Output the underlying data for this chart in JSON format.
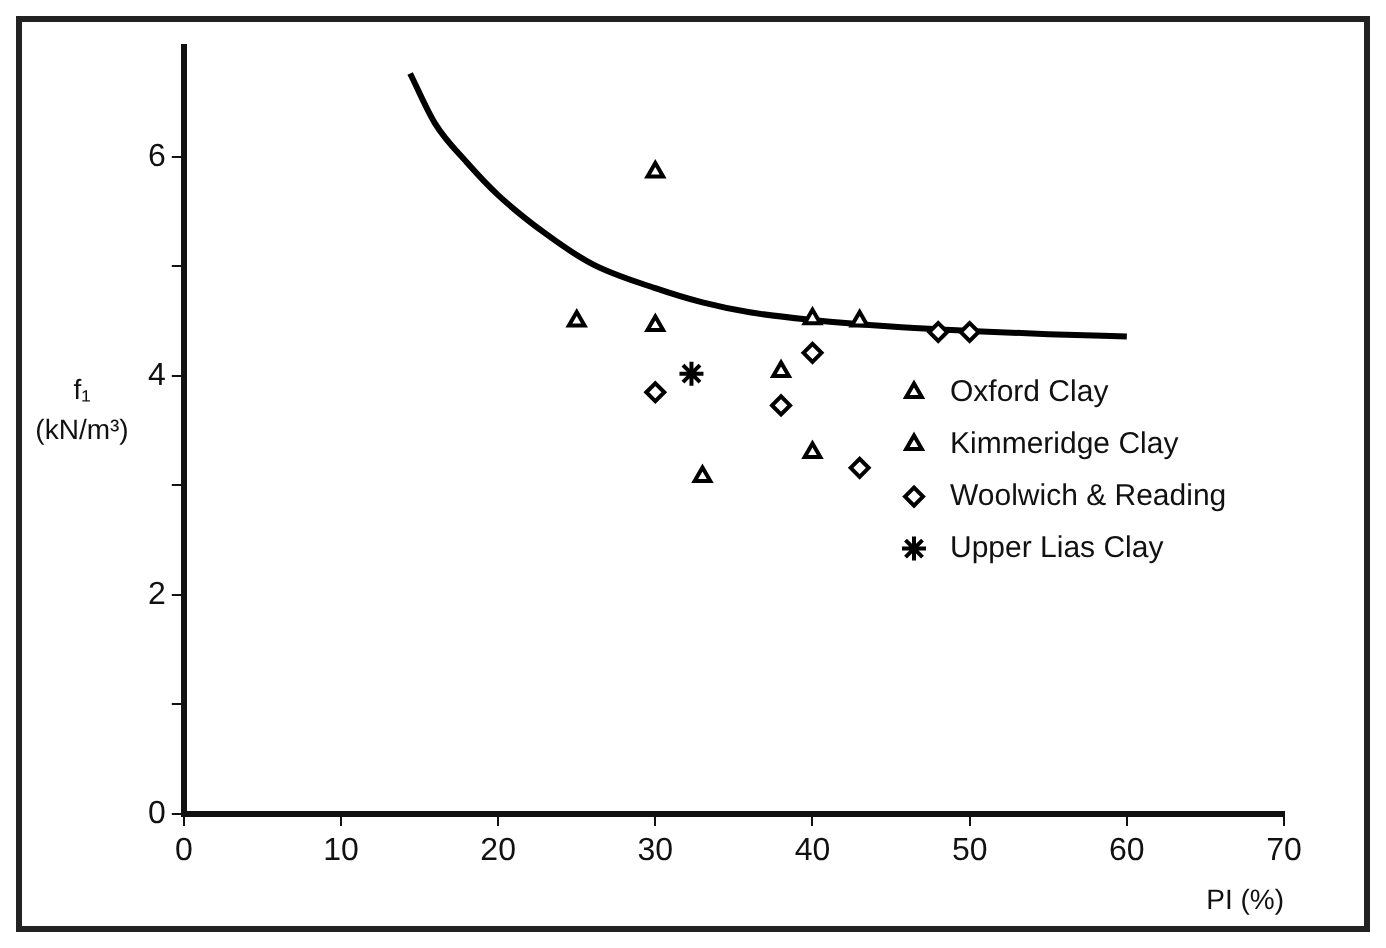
{
  "chart_data": {
    "type": "scatter",
    "xlabel": "PI (%)",
    "ylabel": "f₁ (kN/m³)",
    "xlim": [
      0,
      70
    ],
    "xticks": [
      0,
      10,
      20,
      30,
      40,
      50,
      60,
      70
    ],
    "ylim": [
      0,
      7
    ],
    "yticks": [
      0,
      {
        "value": 1,
        "label": null
      },
      2,
      {
        "value": 3,
        "label": null
      },
      4,
      {
        "value": 5,
        "label": null
      },
      6
    ],
    "grid": false,
    "legend": "right",
    "series": [
      {
        "name": "Oxford Clay",
        "color": "#000000",
        "marker": "triangle",
        "x": [
          30,
          30,
          40
        ],
        "values": [
          5.86,
          4.46,
          3.3
        ]
      },
      {
        "name": "Kimmeridge Clay",
        "color": "#000000",
        "marker": "triangle",
        "x": [
          25,
          33,
          38,
          40,
          43
        ],
        "values": [
          4.5,
          3.08,
          4.04,
          4.52,
          4.5
        ]
      },
      {
        "name": "Woolwich & Reading",
        "color": "#000000",
        "marker": "diamond",
        "x": [
          30,
          38,
          40,
          43,
          48,
          50
        ],
        "values": [
          3.85,
          3.73,
          4.21,
          3.16,
          4.4,
          4.4
        ]
      },
      {
        "name": "Upper Lias Clay",
        "color": "#000000",
        "marker": "cross",
        "x": [
          32.3
        ],
        "values": [
          4.02
        ]
      },
      {
        "type": "line",
        "color": "#000000",
        "marker": "none",
        "line_style": "solid",
        "x": [
          14.4,
          16,
          18,
          20,
          23,
          26,
          30,
          33,
          36,
          40,
          45,
          50,
          55,
          60
        ],
        "values": [
          6.76,
          6.3,
          5.95,
          5.65,
          5.3,
          5.02,
          4.8,
          4.67,
          4.58,
          4.51,
          4.45,
          4.41,
          4.38,
          4.36
        ]
      }
    ]
  }
}
